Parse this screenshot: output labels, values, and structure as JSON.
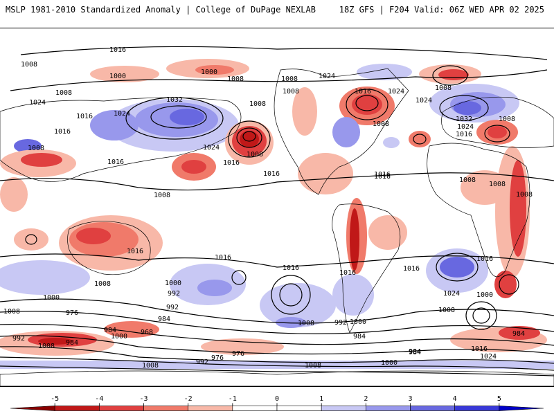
{
  "header": {
    "title": "MSLP 1981-2010 Standardized Anomaly | College of DuPage NEXLAB",
    "run_info": "18Z GFS | F204 Valid: 06Z WED APR 02 2025"
  },
  "colors": {
    "neg5": "#8b0000",
    "neg4": "#c01818",
    "neg3": "#e04040",
    "neg2": "#f07a6a",
    "neg1": "#f8b8a8",
    "zero": "#ffffff",
    "pos1": "#c8c8f4",
    "pos2": "#9898ec",
    "pos3": "#6868e0",
    "pos4": "#3838d8",
    "pos5": "#0000c8",
    "land_outline": "#000000"
  },
  "colorbar": {
    "ticks": [
      "-5",
      "-4",
      "-3",
      "-2",
      "-1",
      "0",
      "1",
      "2",
      "3",
      "4",
      "5"
    ]
  },
  "isobars": [
    {
      "label": "1016"
    },
    {
      "label": "1008"
    },
    {
      "label": "1000"
    },
    {
      "label": "1000"
    },
    {
      "label": "1008"
    },
    {
      "label": "1024"
    },
    {
      "label": "1016"
    },
    {
      "label": "1016"
    },
    {
      "label": "1024"
    },
    {
      "label": "1032"
    },
    {
      "label": "1008"
    },
    {
      "label": "1008"
    },
    {
      "label": "1024"
    },
    {
      "label": "1016"
    },
    {
      "label": "1008"
    },
    {
      "label": "1016"
    },
    {
      "label": "1016"
    },
    {
      "label": "1008"
    },
    {
      "label": "1008"
    },
    {
      "label": "1024"
    },
    {
      "label": "1008"
    },
    {
      "label": "1016"
    },
    {
      "label": "1024"
    },
    {
      "label": "1016"
    },
    {
      "label": "1008"
    },
    {
      "label": "1024"
    },
    {
      "label": "1008"
    },
    {
      "label": "1032"
    },
    {
      "label": "1024"
    },
    {
      "label": "1016"
    },
    {
      "label": "1008"
    },
    {
      "label": "1008"
    },
    {
      "label": "1008"
    },
    {
      "label": "1008"
    },
    {
      "label": "1008"
    },
    {
      "label": "1016"
    },
    {
      "label": "1016"
    },
    {
      "label": "1016"
    },
    {
      "label": "1016"
    },
    {
      "label": "1016"
    },
    {
      "label": "1016"
    },
    {
      "label": "1016"
    },
    {
      "label": "1008"
    },
    {
      "label": "1000"
    },
    {
      "label": "1024"
    },
    {
      "label": "1008"
    },
    {
      "label": "1000"
    },
    {
      "label": "992"
    },
    {
      "label": "1000"
    },
    {
      "label": "984"
    },
    {
      "label": "1008"
    },
    {
      "label": "992"
    },
    {
      "label": "976"
    },
    {
      "label": "984"
    },
    {
      "label": "968"
    },
    {
      "label": "1000"
    },
    {
      "label": "992"
    },
    {
      "label": "984"
    },
    {
      "label": "1008"
    },
    {
      "label": "976"
    },
    {
      "label": "1008"
    },
    {
      "label": "992"
    },
    {
      "label": "984"
    },
    {
      "label": "976"
    },
    {
      "label": "1008"
    },
    {
      "label": "1000"
    },
    {
      "label": "984"
    },
    {
      "label": "992"
    },
    {
      "label": "1008"
    },
    {
      "label": "984"
    },
    {
      "label": "1016"
    },
    {
      "label": "1024"
    },
    {
      "label": "984"
    },
    {
      "label": "1000"
    }
  ]
}
